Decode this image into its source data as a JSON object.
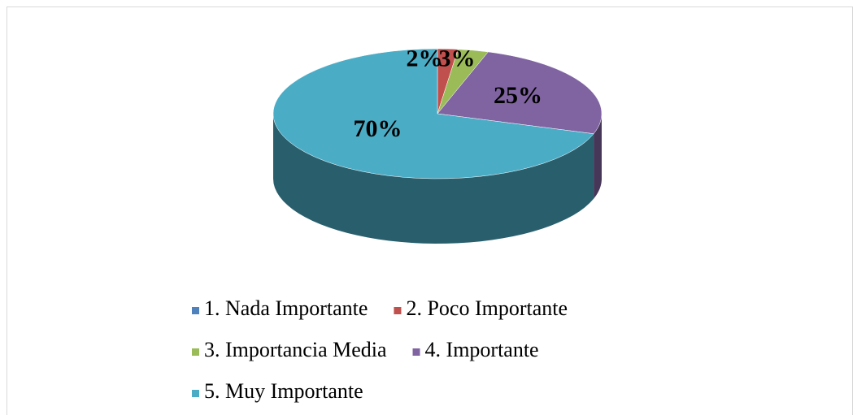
{
  "chart_data": {
    "type": "pie",
    "categories": [
      "1. Nada Importante",
      "2. Poco Importante",
      "3. Importancia Media",
      "4. Importante",
      "5. Muy Importante"
    ],
    "values": [
      0,
      2,
      3,
      25,
      70
    ],
    "value_labels": [
      null,
      "2%",
      "3%",
      "25%",
      "70%"
    ],
    "colors": [
      "#4f81bd",
      "#c0504d",
      "#9bbb59",
      "#8064a2",
      "#4bacc6"
    ],
    "legend": "bottom"
  }
}
